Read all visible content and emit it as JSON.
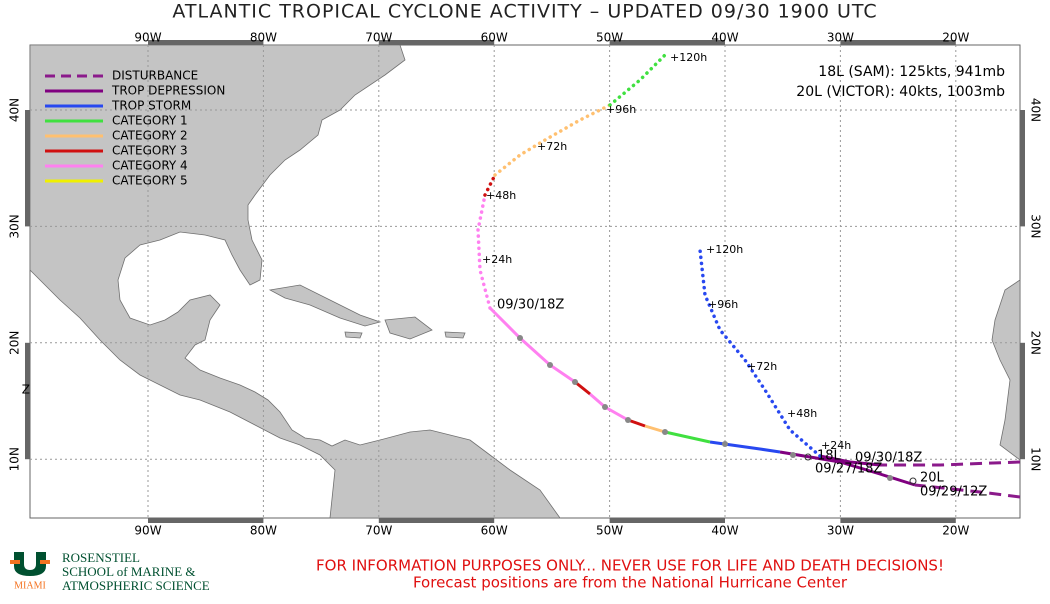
{
  "header": {
    "title": "ATLANTIC TROPICAL CYCLONE ACTIVITY – UPDATED 09/30 1900 UTC"
  },
  "map": {
    "longitude_labels": [
      "90W",
      "80W",
      "70W",
      "60W",
      "50W",
      "40W",
      "30W",
      "20W"
    ],
    "latitude_labels": [
      "40N",
      "30N",
      "20N",
      "10N"
    ],
    "legend": [
      {
        "label": "DISTURBANCE",
        "color": "#8b1a8b",
        "style": "dashed"
      },
      {
        "label": "TROP DEPRESSION",
        "color": "#800080",
        "style": "solid"
      },
      {
        "label": "TROP STORM",
        "color": "#2848f0",
        "style": "solid"
      },
      {
        "label": "CATEGORY 1",
        "color": "#40e040",
        "style": "solid"
      },
      {
        "label": "CATEGORY 2",
        "color": "#ffc070",
        "style": "solid"
      },
      {
        "label": "CATEGORY 3",
        "color": "#d01010",
        "style": "solid"
      },
      {
        "label": "CATEGORY 4",
        "color": "#ff80f0",
        "style": "solid"
      },
      {
        "label": "CATEGORY 5",
        "color": "#f0f000",
        "style": "solid"
      }
    ],
    "storm_info": [
      "18L (SAM): 125kts, 941mb",
      "20L (VICTOR): 40kts, 1003mb"
    ],
    "track_labels": [
      "+120h",
      "+96h",
      "+72h",
      "+48h",
      "+24h",
      "09/30/18Z",
      "+120h",
      "+96h",
      "+72h",
      "+48h",
      "+24h",
      "18L",
      "09/30/18Z",
      "09/27/18Z",
      "20L",
      "09/29/12Z"
    ],
    "edge_label": "Z"
  },
  "footer": {
    "logo": "MIAMI",
    "institution": [
      "ROSENSTIEL",
      "SCHOOL of MARINE &",
      "ATMOSPHERIC SCIENCE"
    ],
    "notice": [
      "FOR INFORMATION PURPOSES ONLY... NEVER USE FOR LIFE AND DEATH DECISIONS!",
      "Forecast positions are from the National Hurricane Center"
    ]
  }
}
